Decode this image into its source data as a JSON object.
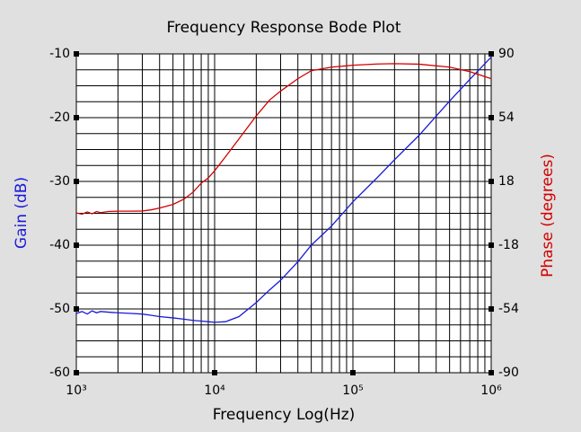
{
  "chart_data": {
    "type": "line",
    "title": "Frequency Response Bode Plot",
    "xlabel": "Frequency Log(Hz)",
    "ylabel": "Gain (dB)",
    "y2label": "Phase (degrees)",
    "xscale": "log",
    "grid": true,
    "xlim": [
      1000,
      1000000
    ],
    "xticks": [
      {
        "value": 1000,
        "label": "10³"
      },
      {
        "value": 10000,
        "label": "10⁴"
      },
      {
        "value": 100000,
        "label": "10⁵"
      },
      {
        "value": 1000000,
        "label": "10⁶"
      }
    ],
    "xticks_minor": [
      2000,
      3000,
      4000,
      5000,
      6000,
      7000,
      8000,
      9000,
      20000,
      30000,
      40000,
      50000,
      60000,
      70000,
      80000,
      90000,
      200000,
      300000,
      400000,
      500000,
      600000,
      700000,
      800000,
      900000
    ],
    "ylim": [
      -60,
      -10
    ],
    "yticks": [
      -60,
      -50,
      -40,
      -30,
      -20,
      -10
    ],
    "yticks_minor": [
      -57.5,
      -55,
      -52.5,
      -47.5,
      -45,
      -42.5,
      -37.5,
      -35,
      -32.5,
      -27.5,
      -25,
      -22.5,
      -17.5,
      -15,
      -12.5
    ],
    "y2lim": [
      -90,
      90
    ],
    "y2ticks": [
      -90,
      -54,
      -18,
      18,
      54,
      90
    ],
    "x": [
      1000,
      1100,
      1200,
      1300,
      1400,
      1500,
      1700,
      2000,
      2500,
      3000,
      3500,
      4000,
      5000,
      6000,
      7000,
      8000,
      9000,
      10000,
      12000,
      15000,
      20000,
      25000,
      30000,
      40000,
      50000,
      70000,
      100000,
      150000,
      200000,
      300000,
      500000,
      700000,
      1000000
    ],
    "series": [
      {
        "name": "Gain",
        "color": "#1a1ad8",
        "axis": "y",
        "values": [
          -50.7,
          -50.4,
          -50.8,
          -50.3,
          -50.6,
          -50.4,
          -50.5,
          -50.6,
          -50.7,
          -50.8,
          -51.0,
          -51.2,
          -51.4,
          -51.6,
          -51.8,
          -51.9,
          -52.0,
          -52.1,
          -52.0,
          -51.2,
          -49.0,
          -47.0,
          -45.5,
          -42.6,
          -40.0,
          -37.0,
          -33.2,
          -29.4,
          -26.6,
          -22.8,
          -17.4,
          -14.0,
          -10.5
        ]
      },
      {
        "name": "Phase",
        "color": "#d40000",
        "axis": "y2",
        "values": [
          0.2,
          -0.5,
          0.8,
          -0.3,
          1.0,
          0.4,
          1.0,
          1.2,
          1.2,
          1.3,
          2,
          3,
          5,
          8,
          12,
          17,
          20,
          24,
          32,
          42,
          55,
          64,
          69,
          76,
          80.5,
          82.5,
          83.6,
          84.3,
          84.5,
          84.2,
          82.5,
          80,
          76
        ]
      }
    ]
  }
}
